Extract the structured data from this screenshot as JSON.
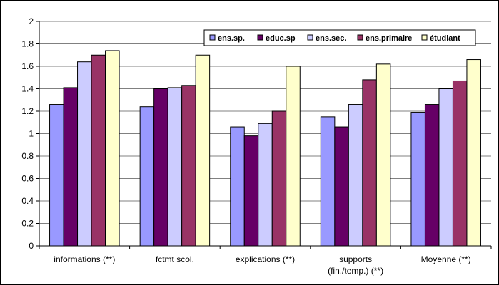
{
  "chart_data": {
    "type": "bar",
    "title": "",
    "xlabel": "",
    "ylabel": "",
    "ylim": [
      0,
      2
    ],
    "yticks": [
      "0",
      "0.2",
      "0.4",
      "0.6",
      "0.8",
      "1",
      "1.2",
      "1.4",
      "1.6",
      "1.8",
      "2"
    ],
    "grid": true,
    "legend_position": "top-right",
    "categories": [
      [
        "informations (**)"
      ],
      [
        "fctmt scol."
      ],
      [
        "explications (**)"
      ],
      [
        "supports",
        "(fin./temp.) (**)"
      ],
      [
        "Moyenne (**)"
      ]
    ],
    "series": [
      {
        "name": "ens.sp.",
        "color": "#9999ff",
        "values": [
          1.26,
          1.24,
          1.06,
          1.15,
          1.19
        ]
      },
      {
        "name": "educ.sp",
        "color": "#660066",
        "values": [
          1.41,
          1.4,
          0.98,
          1.06,
          1.26
        ]
      },
      {
        "name": "ens.sec.",
        "color": "#ccccff",
        "values": [
          1.64,
          1.41,
          1.09,
          1.26,
          1.4
        ]
      },
      {
        "name": "ens.primaire",
        "color": "#993366",
        "values": [
          1.7,
          1.43,
          1.2,
          1.48,
          1.47
        ]
      },
      {
        "name": "étudiant",
        "color": "#ffffcc",
        "values": [
          1.74,
          1.7,
          1.6,
          1.62,
          1.66
        ]
      }
    ]
  }
}
